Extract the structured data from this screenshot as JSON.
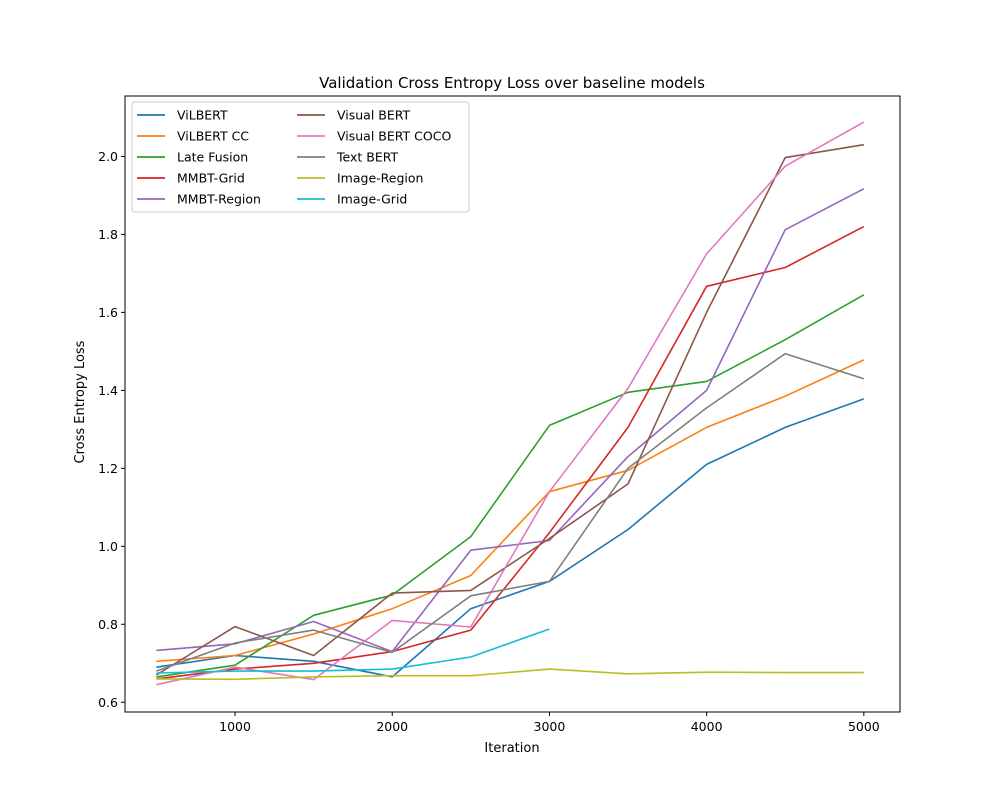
{
  "chart_data": {
    "type": "line",
    "title": "Validation Cross Entropy Loss over baseline models",
    "xlabel": "Iteration",
    "ylabel": "Cross Entropy Loss",
    "xlim": [
      300,
      5230
    ],
    "ylim": [
      0.575,
      2.155
    ],
    "xticks": [
      1000,
      2000,
      3000,
      4000,
      5000
    ],
    "yticks": [
      0.6,
      0.8,
      1.0,
      1.2,
      1.4,
      1.6,
      1.8,
      2.0
    ],
    "ytick_labels": [
      "0.6",
      "0.8",
      "1.0",
      "1.2",
      "1.4",
      "1.6",
      "1.8",
      "2.0"
    ],
    "grid": false,
    "legend_position": "upper-left",
    "legend_columns": 2,
    "series": [
      {
        "name": "ViLBERT",
        "color": "#1f77b4",
        "x": [
          500,
          1000,
          1500,
          2000,
          2500,
          3000,
          3500,
          4000,
          4500,
          5000
        ],
        "y": [
          0.69,
          0.72,
          0.705,
          0.665,
          0.84,
          0.91,
          1.043,
          1.21,
          1.305,
          1.378
        ]
      },
      {
        "name": "ViLBERT CC",
        "color": "#ff7f0e",
        "x": [
          500,
          1000,
          1500,
          2000,
          2500,
          3000,
          3500,
          4000,
          4500,
          5000
        ],
        "y": [
          0.705,
          0.72,
          0.775,
          0.84,
          0.925,
          1.14,
          1.195,
          1.305,
          1.385,
          1.478
        ]
      },
      {
        "name": "Late Fusion",
        "color": "#2ca02c",
        "x": [
          500,
          1000,
          1500,
          2000,
          2500,
          3000,
          3500,
          4000,
          4500,
          5000
        ],
        "y": [
          0.665,
          0.695,
          0.823,
          0.875,
          1.025,
          1.31,
          1.395,
          1.423,
          1.53,
          1.645
        ]
      },
      {
        "name": "MMBT-Grid",
        "color": "#d62728",
        "x": [
          500,
          1000,
          1500,
          2000,
          2500,
          3000,
          3500,
          4000,
          4500,
          5000
        ],
        "y": [
          0.66,
          0.685,
          0.7,
          0.73,
          0.785,
          1.035,
          1.305,
          1.667,
          1.715,
          1.82
        ]
      },
      {
        "name": "MMBT-Region",
        "color": "#9467bd",
        "x": [
          500,
          1000,
          1500,
          2000,
          2500,
          3000,
          3500,
          4000,
          4500,
          5000
        ],
        "y": [
          0.733,
          0.75,
          0.807,
          0.73,
          0.99,
          1.015,
          1.23,
          1.4,
          1.812,
          1.917
        ]
      },
      {
        "name": "Visual BERT",
        "color": "#8c564b",
        "x": [
          500,
          1000,
          1500,
          2000,
          2500,
          3000,
          3500,
          4000,
          4500,
          5000
        ],
        "y": [
          0.67,
          0.794,
          0.72,
          0.88,
          0.887,
          1.02,
          1.16,
          1.6,
          1.997,
          2.03
        ]
      },
      {
        "name": "Visual BERT COCO",
        "color": "#e377c2",
        "x": [
          500,
          1000,
          1500,
          2000,
          2500,
          3000,
          3500,
          4000,
          4500,
          5000
        ],
        "y": [
          0.645,
          0.69,
          0.658,
          0.81,
          0.793,
          1.14,
          1.405,
          1.75,
          1.975,
          2.088
        ]
      },
      {
        "name": "Text BERT",
        "color": "#7f7f7f",
        "x": [
          500,
          1000,
          1500,
          2000,
          2500,
          3000,
          3500,
          4000,
          4500,
          5000
        ],
        "y": [
          0.68,
          0.752,
          0.785,
          0.728,
          0.873,
          0.91,
          1.2,
          1.355,
          1.494,
          1.43
        ]
      },
      {
        "name": "Image-Region",
        "color": "#bcbd22",
        "x": [
          500,
          1000,
          1500,
          2000,
          2500,
          3000,
          3500,
          4000,
          4500,
          5000
        ],
        "y": [
          0.66,
          0.659,
          0.665,
          0.668,
          0.668,
          0.685,
          0.673,
          0.677,
          0.676,
          0.676
        ]
      },
      {
        "name": "Image-Grid",
        "color": "#17becf",
        "x": [
          500,
          1000,
          1500,
          2000,
          2500,
          3000
        ],
        "y": [
          0.675,
          0.68,
          0.68,
          0.685,
          0.716,
          0.788
        ]
      }
    ]
  }
}
